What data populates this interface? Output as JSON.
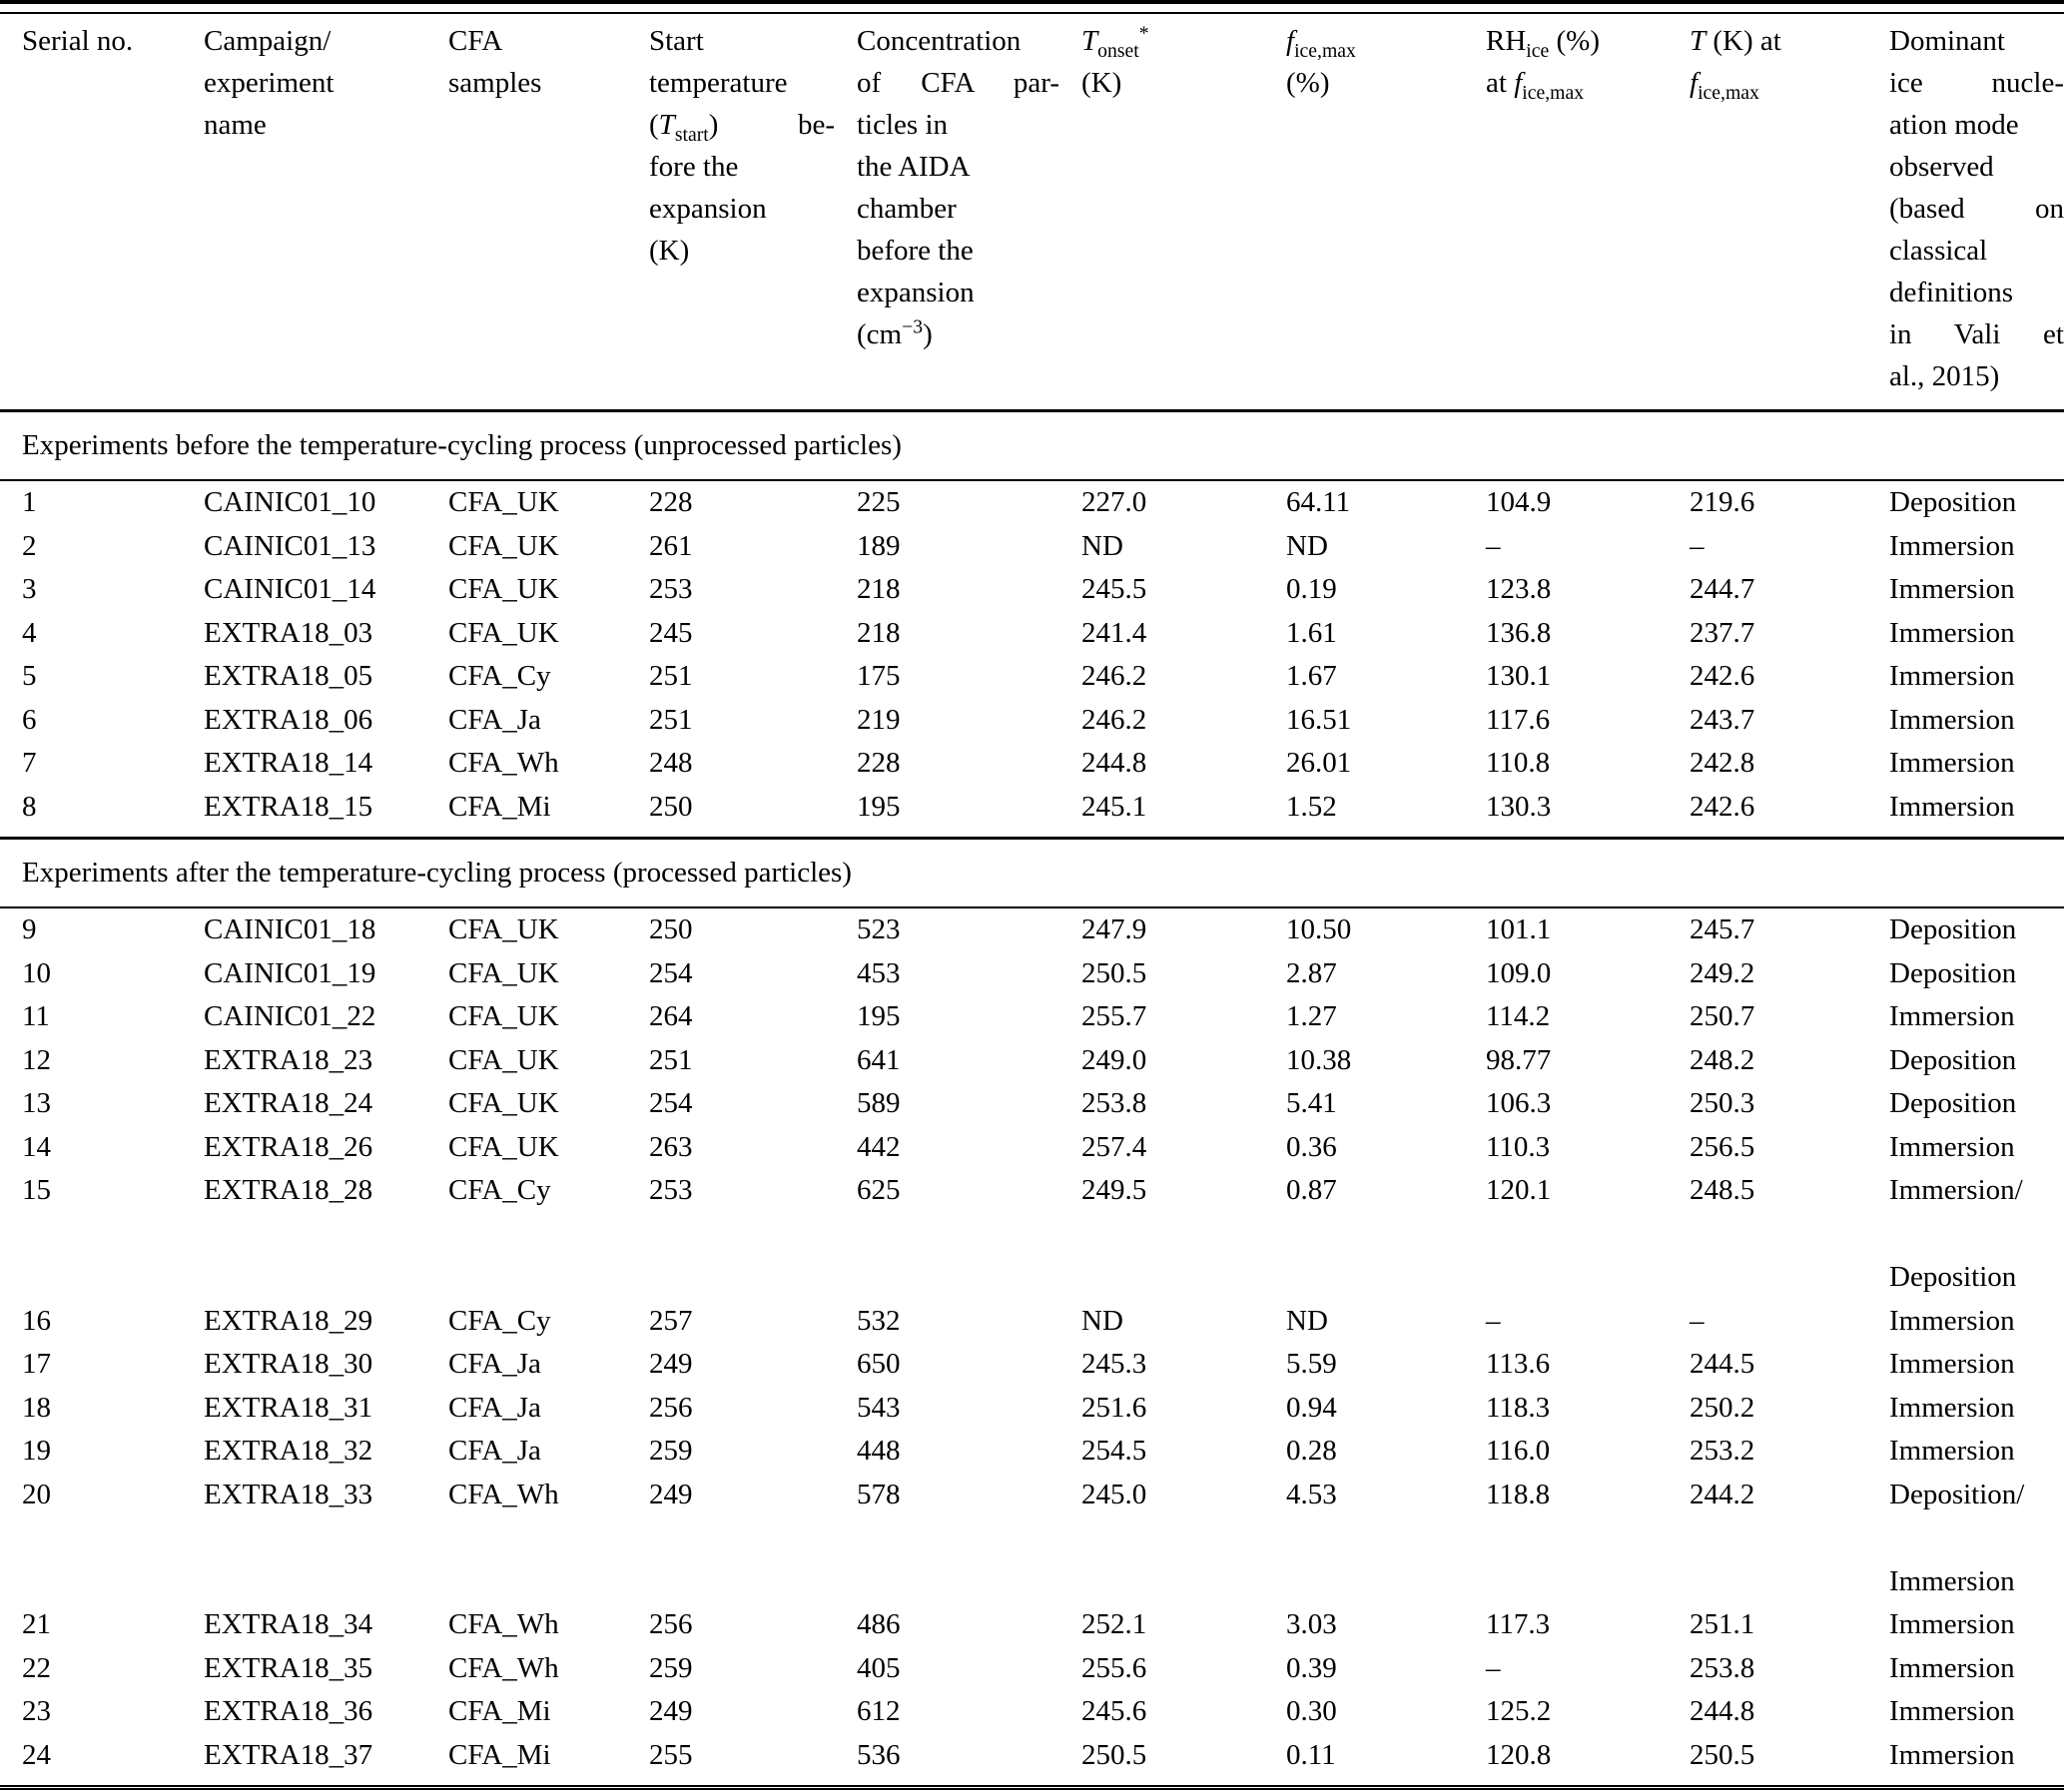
{
  "table": {
    "columns": {
      "serial": "Serial no.",
      "campaign": [
        "Campaign/",
        "experiment",
        "name"
      ],
      "cfa": [
        "CFA",
        "samples"
      ],
      "start_temp": {
        "l1": "Start",
        "l2": "temperature",
        "l3_open": "(",
        "sym": "T",
        "sub": "start",
        "l3_close": ") be-",
        "l4": "fore the",
        "l5": "expansion",
        "l6": "(K)"
      },
      "conc": {
        "l1": "Concentration",
        "l2": "of CFA par-",
        "l3": "ticles in",
        "l4": "the AIDA",
        "l5": "chamber",
        "l6": "before the",
        "l7": "expansion",
        "unit_pre": "(cm",
        "unit_sup": "−3",
        "unit_post": ")"
      },
      "t_onset": {
        "sym": "T",
        "sub": "onset",
        "star": "*",
        "unit": "(K)"
      },
      "f_ice": {
        "sym": "f",
        "sub": "ice,max",
        "unit": "(%)"
      },
      "rh_ice": {
        "pre": "RH",
        "sub": "ice",
        "pct": "(%)",
        "at": "at",
        "sym": "f",
        "sub2": "ice,max"
      },
      "t_at": {
        "sym": "T",
        "post": "(K) at",
        "sym2": "f",
        "sub2": "ice,max"
      },
      "mode": [
        "Dominant",
        "ice nucle-",
        "ation mode",
        "observed",
        "(based on",
        "classical",
        "definitions",
        "in Vali et",
        "al., 2015)"
      ]
    },
    "sections": [
      {
        "title": "Experiments before the temperature-cycling process (unprocessed particles)",
        "rows": [
          [
            "1",
            "CAINIC01_10",
            "CFA_UK",
            "228",
            "225",
            "227.0",
            "64.11",
            "104.9",
            "219.6",
            "Deposition"
          ],
          [
            "2",
            "CAINIC01_13",
            "CFA_UK",
            "261",
            "189",
            "ND",
            "ND",
            "–",
            "–",
            "Immersion"
          ],
          [
            "3",
            "CAINIC01_14",
            "CFA_UK",
            "253",
            "218",
            "245.5",
            "0.19",
            "123.8",
            "244.7",
            "Immersion"
          ],
          [
            "4",
            "EXTRA18_03",
            "CFA_UK",
            "245",
            "218",
            "241.4",
            "1.61",
            "136.8",
            "237.7",
            "Immersion"
          ],
          [
            "5",
            "EXTRA18_05",
            "CFA_Cy",
            "251",
            "175",
            "246.2",
            "1.67",
            "130.1",
            "242.6",
            "Immersion"
          ],
          [
            "6",
            "EXTRA18_06",
            "CFA_Ja",
            "251",
            "219",
            "246.2",
            "16.51",
            "117.6",
            "243.7",
            "Immersion"
          ],
          [
            "7",
            "EXTRA18_14",
            "CFA_Wh",
            "248",
            "228",
            "244.8",
            "26.01",
            "110.8",
            "242.8",
            "Immersion"
          ],
          [
            "8",
            "EXTRA18_15",
            "CFA_Mi",
            "250",
            "195",
            "245.1",
            "1.52",
            "130.3",
            "242.6",
            "Immersion"
          ]
        ]
      },
      {
        "title": "Experiments after the temperature-cycling process (processed particles)",
        "rows": [
          [
            "9",
            "CAINIC01_18",
            "CFA_UK",
            "250",
            "523",
            "247.9",
            "10.50",
            "101.1",
            "245.7",
            "Deposition"
          ],
          [
            "10",
            "CAINIC01_19",
            "CFA_UK",
            "254",
            "453",
            "250.5",
            "2.87",
            "109.0",
            "249.2",
            "Deposition"
          ],
          [
            "11",
            "CAINIC01_22",
            "CFA_UK",
            "264",
            "195",
            "255.7",
            "1.27",
            "114.2",
            "250.7",
            "Immersion"
          ],
          [
            "12",
            "EXTRA18_23",
            "CFA_UK",
            "251",
            "641",
            "249.0",
            "10.38",
            "98.77",
            "248.2",
            "Deposition"
          ],
          [
            "13",
            "EXTRA18_24",
            "CFA_UK",
            "254",
            "589",
            "253.8",
            "5.41",
            "106.3",
            "250.3",
            "Deposition"
          ],
          [
            "14",
            "EXTRA18_26",
            "CFA_UK",
            "263",
            "442",
            "257.4",
            "0.36",
            "110.3",
            "256.5",
            "Immersion"
          ],
          [
            "15",
            "EXTRA18_28",
            "CFA_Cy",
            "253",
            "625",
            "249.5",
            "0.87",
            "120.1",
            "248.5",
            "Immersion/\n\nDeposition"
          ],
          [
            "16",
            "EXTRA18_29",
            "CFA_Cy",
            "257",
            "532",
            "ND",
            "ND",
            "–",
            "–",
            "Immersion"
          ],
          [
            "17",
            "EXTRA18_30",
            "CFA_Ja",
            "249",
            "650",
            "245.3",
            "5.59",
            "113.6",
            "244.5",
            "Immersion"
          ],
          [
            "18",
            "EXTRA18_31",
            "CFA_Ja",
            "256",
            "543",
            "251.6",
            "0.94",
            "118.3",
            "250.2",
            "Immersion"
          ],
          [
            "19",
            "EXTRA18_32",
            "CFA_Ja",
            "259",
            "448",
            "254.5",
            "0.28",
            "116.0",
            "253.2",
            "Immersion"
          ],
          [
            "20",
            "EXTRA18_33",
            "CFA_Wh",
            "249",
            "578",
            "245.0",
            "4.53",
            "118.8",
            "244.2",
            "Deposition/\n\nImmersion"
          ],
          [
            "21",
            "EXTRA18_34",
            "CFA_Wh",
            "256",
            "486",
            "252.1",
            "3.03",
            "117.3",
            "251.1",
            "Immersion"
          ],
          [
            "22",
            "EXTRA18_35",
            "CFA_Wh",
            "259",
            "405",
            "255.6",
            "0.39",
            "–",
            "253.8",
            "Immersion"
          ],
          [
            "23",
            "EXTRA18_36",
            "CFA_Mi",
            "249",
            "612",
            "245.6",
            "0.30",
            "125.2",
            "244.8",
            "Immersion"
          ],
          [
            "24",
            "EXTRA18_37",
            "CFA_Mi",
            "255",
            "536",
            "250.5",
            "0.11",
            "120.8",
            "250.5",
            "Immersion"
          ]
        ]
      }
    ]
  }
}
